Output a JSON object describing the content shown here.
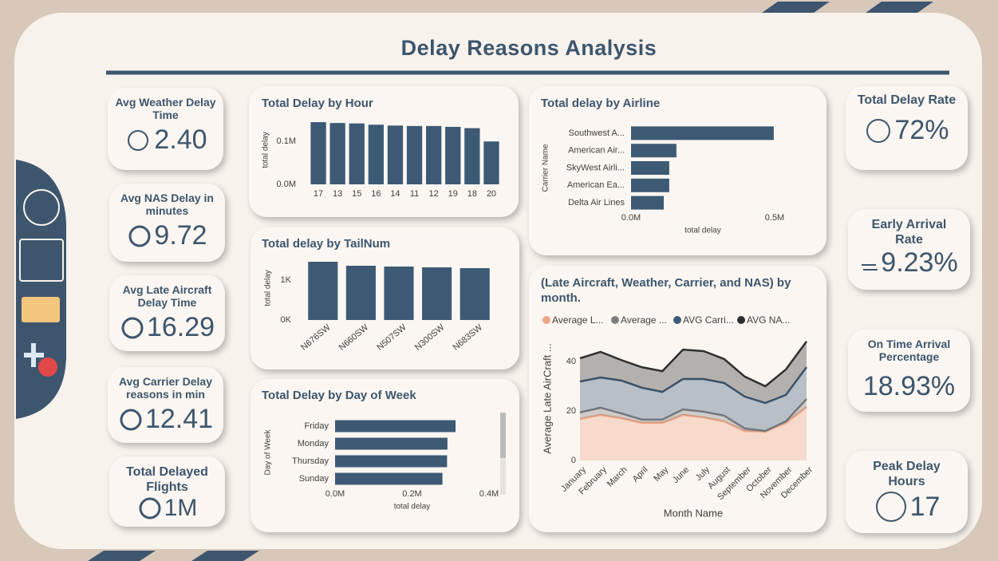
{
  "title": "Delay Reasons Analysis",
  "kpis": [
    {
      "label": "Avg Weather Delay Time",
      "value": "2.40"
    },
    {
      "label": "Avg NAS Delay in minutes",
      "value": "9.72"
    },
    {
      "label": "Avg Late Aircraft Delay Time",
      "value": "16.29"
    },
    {
      "label": "Avg Carrier Delay reasons in min",
      "value": "12.41"
    },
    {
      "label": "Total Delayed Flights",
      "value": "1M"
    },
    {
      "label": "Total Delay Rate",
      "value": "72%"
    },
    {
      "label": "Early Arrival Rate",
      "value": "9.23%"
    },
    {
      "label": "On Time Arrival Percentage",
      "value": "18.93%"
    },
    {
      "label": "Peak Delay Hours",
      "value": "17"
    }
  ],
  "chart_data": [
    {
      "type": "bar",
      "title": "Total Delay by Hour",
      "y_label": "total delay",
      "color": "#3d5a75",
      "categories": [
        "17",
        "13",
        "15",
        "16",
        "14",
        "11",
        "12",
        "19",
        "18",
        "20"
      ],
      "values": [
        145000,
        143000,
        142000,
        139000,
        137000,
        136000,
        136000,
        134000,
        131000,
        100000
      ],
      "ylim": [
        0,
        160000
      ],
      "yticks": [
        {
          "value": 0,
          "label": "0.0M"
        },
        {
          "value": 100000,
          "label": "0.1M"
        }
      ]
    },
    {
      "type": "bar",
      "title": "Total delay by TailNum",
      "y_label": "total delay",
      "color": "#3d5a75",
      "categories": [
        "N676SW",
        "N660SW",
        "N507SW",
        "N300SW",
        "N683SW"
      ],
      "values": [
        1460,
        1360,
        1340,
        1320,
        1300
      ],
      "ylim": [
        0,
        1600
      ],
      "yticks": [
        {
          "value": 0,
          "label": "0K"
        },
        {
          "value": 1000,
          "label": "1K"
        }
      ]
    },
    {
      "type": "bar",
      "orientation": "horizontal",
      "title": "Total Delay by Day of Week",
      "x_label": "total delay",
      "y_label": "Day of Week",
      "color": "#3d5a75",
      "categories": [
        "Friday",
        "Monday",
        "Thursday",
        "Sunday"
      ],
      "values": [
        313000,
        292000,
        291000,
        279000
      ],
      "xlim": [
        0,
        400000
      ],
      "xticks": [
        {
          "value": 0,
          "label": "0.0M"
        },
        {
          "value": 200000,
          "label": "0.2M"
        },
        {
          "value": 400000,
          "label": "0.4M"
        }
      ]
    },
    {
      "type": "bar",
      "orientation": "horizontal",
      "title": "Total delay by Airline",
      "x_label": "total delay",
      "y_label": "Carrier Name",
      "color": "#3d5a75",
      "categories": [
        "Southwest A...",
        "American Air...",
        "SkyWest Airli...",
        "American Ea...",
        "Delta Air Lines"
      ],
      "values": [
        497000,
        158000,
        133000,
        133000,
        114000
      ],
      "xlim": [
        0,
        500000
      ],
      "xticks": [
        {
          "value": 0,
          "label": "0.0M"
        },
        {
          "value": 500000,
          "label": "0.5M"
        }
      ]
    },
    {
      "type": "area",
      "stacked": true,
      "title": "(Late Aircraft, Weather, Carrier, and NAS) by month.",
      "x_label": "Month Name",
      "y_label": "Average Late AirCraft ...",
      "categories": [
        "January",
        "February",
        "March",
        "April",
        "May",
        "June",
        "July",
        "August",
        "September",
        "October",
        "November",
        "December"
      ],
      "series": [
        {
          "name": "Average L...",
          "color": "#f0a585",
          "values": [
            16.8,
            18.4,
            17.1,
            15.2,
            15.2,
            18.4,
            17.4,
            15.8,
            11.9,
            11.6,
            15.2,
            21.6
          ]
        },
        {
          "name": "Average ...",
          "color": "#7f7f7f",
          "values": [
            2.6,
            2.9,
            1.9,
            1.3,
            1.3,
            2.2,
            2.3,
            2.3,
            1.0,
            0.3,
            0.6,
            3.2
          ]
        },
        {
          "name": "AVG Carri...",
          "color": "#3d5a75",
          "values": [
            12.5,
            12.2,
            13.3,
            12.9,
            11.2,
            12.3,
            13.2,
            13.2,
            12.9,
            11.3,
            10.7,
            12.9
          ]
        },
        {
          "name": "AVG NA...",
          "color": "#2f2f2f",
          "values": [
            9.4,
            10.4,
            8.3,
            8.3,
            8.4,
            11.9,
            11.3,
            9.7,
            8.1,
            6.8,
            10.3,
            10.4
          ]
        }
      ],
      "ylim": [
        0,
        50
      ],
      "yticks": [
        0,
        20,
        40
      ]
    }
  ]
}
